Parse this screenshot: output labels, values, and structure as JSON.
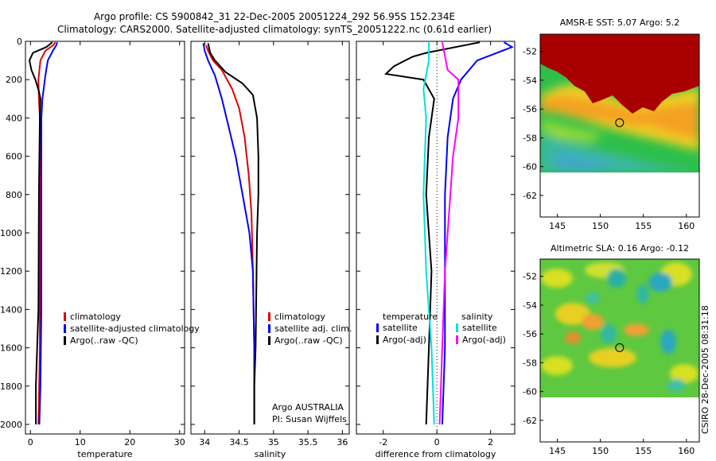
{
  "header": {
    "line1": "Argo profile: CS 5900842_31 22-Dec-2005 20051224_292 56.95S 152.234E",
    "line2": "Climatology: CARS2000. Satellite-adjusted climatology: synTS_20051222.nc (0.61d earlier)"
  },
  "colors": {
    "climatology": "#e00000",
    "satellite": "#0000ff",
    "argo": "#000000",
    "salinity_sat": "#00e0e0",
    "salinity_argo": "#ff00ff"
  },
  "chart_data": [
    {
      "type": "line",
      "id": "temperature",
      "xlabel": "temperature",
      "xlim": [
        -1,
        31
      ],
      "ylim": [
        2050,
        0
      ],
      "xticks": [
        0,
        10,
        20,
        30
      ],
      "yticks": [
        0,
        200,
        400,
        600,
        800,
        1000,
        1200,
        1400,
        1600,
        1800,
        2000
      ],
      "series": [
        {
          "name": "climatology",
          "color": "#e00000",
          "points": [
            [
              5,
              5
            ],
            [
              4.6,
              20
            ],
            [
              3,
              50
            ],
            [
              2,
              100
            ],
            [
              1.6,
              200
            ],
            [
              1.7,
              300
            ],
            [
              1.9,
              400
            ],
            [
              1.9,
              600
            ],
            [
              1.9,
              1000
            ],
            [
              1.9,
              1600
            ],
            [
              1.6,
              2000
            ]
          ]
        },
        {
          "name": "satellite-adjusted climatology",
          "color": "#0000ff",
          "points": [
            [
              5.4,
              5
            ],
            [
              5.2,
              20
            ],
            [
              4.5,
              50
            ],
            [
              3.5,
              100
            ],
            [
              3,
              180
            ],
            [
              2.4,
              300
            ],
            [
              2.2,
              400
            ],
            [
              2.2,
              800
            ],
            [
              2.2,
              1400
            ],
            [
              2,
              1800
            ],
            [
              1.8,
              2000
            ]
          ]
        },
        {
          "name": "Argo(..raw -QC)",
          "color": "#000000",
          "points": [
            [
              4.4,
              5
            ],
            [
              3.2,
              30
            ],
            [
              0.5,
              60
            ],
            [
              -0.2,
              100
            ],
            [
              0.2,
              150
            ],
            [
              1,
              200
            ],
            [
              1.7,
              260
            ],
            [
              2,
              300
            ],
            [
              1.9,
              400
            ],
            [
              1.7,
              800
            ],
            [
              1.6,
              1400
            ],
            [
              1.1,
              1800
            ],
            [
              1.1,
              2000
            ]
          ]
        }
      ],
      "legend": [
        "climatology",
        "satellite-adjusted climatology",
        "Argo(..raw -QC)"
      ]
    },
    {
      "type": "line",
      "id": "salinity",
      "xlabel": "salinity",
      "xlim": [
        33.8,
        36.1
      ],
      "ylim": [
        2050,
        0
      ],
      "xticks": [
        34,
        34.5,
        35,
        35.5,
        36
      ],
      "series": [
        {
          "name": "climatology",
          "color": "#e00000",
          "points": [
            [
              34.02,
              20
            ],
            [
              34.05,
              50
            ],
            [
              34.12,
              100
            ],
            [
              34.25,
              150
            ],
            [
              34.4,
              250
            ],
            [
              34.5,
              350
            ],
            [
              34.58,
              500
            ],
            [
              34.64,
              700
            ],
            [
              34.68,
              900
            ],
            [
              34.7,
              1200
            ],
            [
              34.72,
              1600
            ],
            [
              34.72,
              2000
            ]
          ]
        },
        {
          "name": "satellite adj. clim.",
          "color": "#0000ff",
          "points": [
            [
              33.98,
              10
            ],
            [
              34.0,
              50
            ],
            [
              34.05,
              100
            ],
            [
              34.15,
              180
            ],
            [
              34.25,
              300
            ],
            [
              34.35,
              450
            ],
            [
              34.45,
              600
            ],
            [
              34.55,
              800
            ],
            [
              34.65,
              1000
            ],
            [
              34.7,
              1200
            ],
            [
              34.72,
              1600
            ],
            [
              34.72,
              2000
            ]
          ]
        },
        {
          "name": "Argo(..raw -QC)",
          "color": "#000000",
          "points": [
            [
              34.05,
              10
            ],
            [
              34.08,
              60
            ],
            [
              34.15,
              100
            ],
            [
              34.3,
              160
            ],
            [
              34.55,
              220
            ],
            [
              34.7,
              280
            ],
            [
              34.76,
              400
            ],
            [
              34.78,
              600
            ],
            [
              34.78,
              800
            ],
            [
              34.76,
              1000
            ],
            [
              34.75,
              1300
            ],
            [
              34.74,
              1600
            ],
            [
              34.72,
              1800
            ],
            [
              34.72,
              2000
            ]
          ]
        }
      ],
      "legend": [
        "climatology",
        "satellite adj. clim.",
        "Argo(..raw -QC)"
      ],
      "annotation": [
        "Argo AUSTRALIA",
        "PI: Susan Wijffels"
      ]
    },
    {
      "type": "line",
      "id": "difference",
      "xlabel": "difference from climatology",
      "xlim": [
        -3,
        2.9
      ],
      "ylim": [
        2050,
        0
      ],
      "xticks": [
        -2,
        0,
        2
      ],
      "series": [
        {
          "name": "temperature satellite",
          "color": "#0000ff",
          "points": [
            [
              2.5,
              5
            ],
            [
              2.8,
              30
            ],
            [
              1.5,
              100
            ],
            [
              0.9,
              200
            ],
            [
              0.6,
              300
            ],
            [
              0.4,
              500
            ],
            [
              0.3,
              800
            ],
            [
              0.3,
              1200
            ],
            [
              0.3,
              1600
            ],
            [
              0.2,
              2000
            ]
          ]
        },
        {
          "name": "temperature Argo(-adj)",
          "color": "#000000",
          "points": [
            [
              1.6,
              5
            ],
            [
              -0.4,
              60
            ],
            [
              -0.9,
              80
            ],
            [
              -1.6,
              130
            ],
            [
              -1.9,
              170
            ],
            [
              -0.5,
              200
            ],
            [
              -0.1,
              300
            ],
            [
              -0.3,
              500
            ],
            [
              -0.4,
              800
            ],
            [
              -0.2,
              1200
            ],
            [
              -0.3,
              1600
            ],
            [
              -0.4,
              2000
            ]
          ]
        },
        {
          "name": "salinity satellite",
          "color": "#00e0e0",
          "points": [
            [
              -0.3,
              5
            ],
            [
              -0.3,
              100
            ],
            [
              -0.5,
              250
            ],
            [
              -0.4,
              400
            ],
            [
              -0.5,
              800
            ],
            [
              -0.4,
              1200
            ],
            [
              -0.2,
              1600
            ],
            [
              -0.1,
              2000
            ]
          ]
        },
        {
          "name": "salinity Argo(-adj)",
          "color": "#ff00ff",
          "points": [
            [
              0.2,
              5
            ],
            [
              0.4,
              150
            ],
            [
              0.8,
              200
            ],
            [
              0.8,
              400
            ],
            [
              0.6,
              600
            ],
            [
              0.5,
              800
            ],
            [
              0.3,
              1200
            ],
            [
              0.2,
              1600
            ],
            [
              0.1,
              2000
            ]
          ]
        }
      ],
      "legend_headers": [
        "temperature",
        "salinity"
      ],
      "legend": [
        "satellite",
        "Argo(-adj)",
        "satellite",
        "Argo(-adj)"
      ]
    },
    {
      "type": "heatmap",
      "id": "sst_map",
      "title": "AMSR-E SST: 5.07 Argo: 5.2",
      "xlim": [
        143,
        161.5
      ],
      "ylim": [
        -63.5,
        -50.8
      ],
      "xticks": [
        145,
        150,
        155,
        160
      ],
      "yticks": [
        -52,
        -54,
        -56,
        -58,
        -60,
        -62
      ],
      "argo_position": [
        152.234,
        -56.95
      ]
    },
    {
      "type": "heatmap",
      "id": "sla_map",
      "title": "Altimetric SLA: 0.16 Argo: -0.12",
      "xlim": [
        143,
        161.5
      ],
      "ylim": [
        -63.5,
        -50.8
      ],
      "xticks": [
        145,
        150,
        155,
        160
      ],
      "yticks": [
        -52,
        -54,
        -56,
        -58,
        -60,
        -62
      ],
      "argo_position": [
        152.234,
        -56.95
      ]
    }
  ],
  "footer": {
    "stamp": "CSIRO 28-Dec-2005 08:31:18"
  }
}
